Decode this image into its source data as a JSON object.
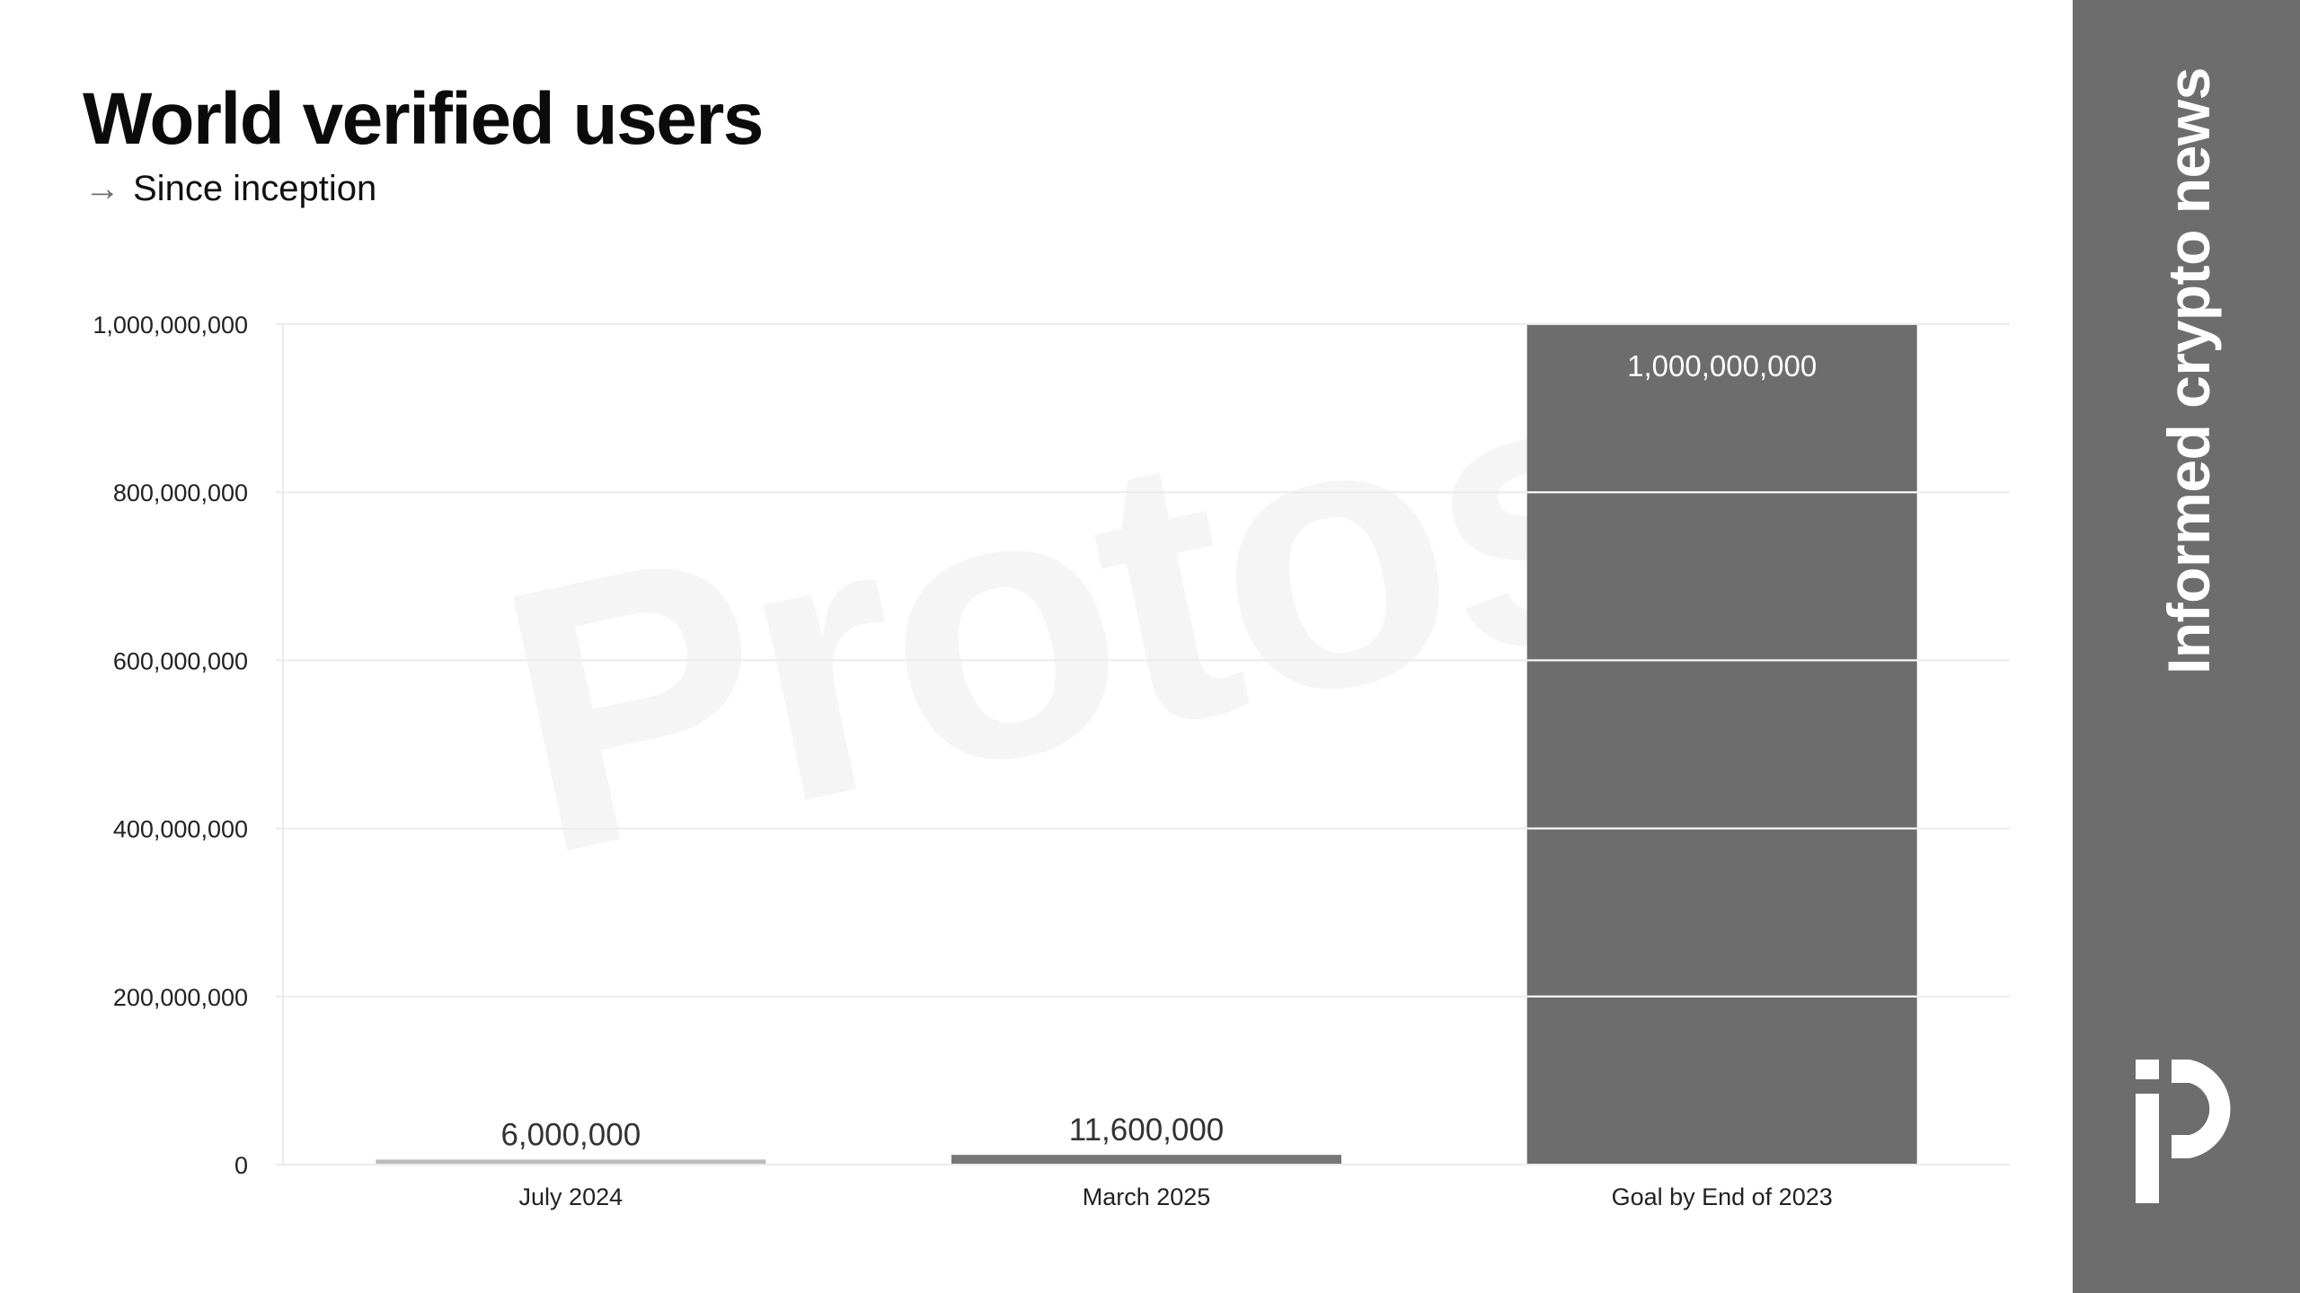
{
  "header": {
    "title": "World verified users",
    "subtitle_arrow": "→",
    "subtitle": "Since inception"
  },
  "sidebar": {
    "tagline": "Informed crypto news",
    "logo_icon": "protos-logo-icon",
    "bg_color": "#6d6d6d"
  },
  "watermark": "Protos",
  "chart_data": {
    "type": "bar",
    "title": "World verified users",
    "subtitle": "Since inception",
    "categories": [
      "July 2024",
      "March 2025",
      "Goal by End of 2023"
    ],
    "values": [
      6000000,
      11600000,
      1000000000
    ],
    "value_labels": [
      "6,000,000",
      "11,600,000",
      "1,000,000,000"
    ],
    "bar_colors": [
      "#bdbdbd",
      "#777777",
      "#6d6d6d"
    ],
    "ylim": [
      0,
      1000000000
    ],
    "yticks": [
      0,
      200000000,
      400000000,
      600000000,
      800000000,
      1000000000
    ],
    "ytick_labels": [
      "0",
      "200,000,000",
      "400,000,000",
      "600,000,000",
      "800,000,000",
      "1,000,000,000"
    ],
    "xlabel": "",
    "ylabel": "",
    "grid": true,
    "legend": "none"
  }
}
